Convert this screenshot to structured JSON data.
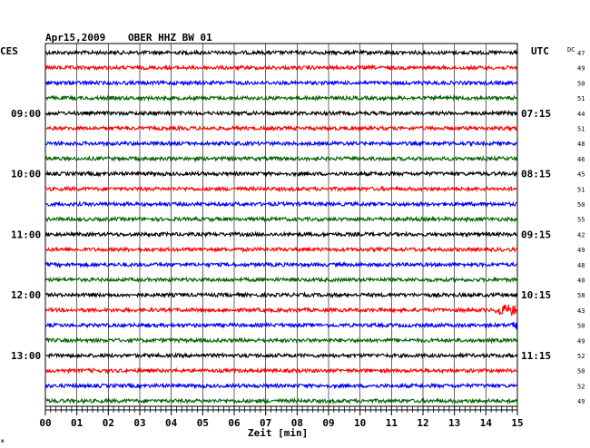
{
  "header": {
    "date": "Apr15,2009",
    "station": "OBER HHZ BW 01",
    "left_timezone": "CES",
    "right_timezone": "UTC",
    "dc_label": "DC"
  },
  "chart_data": {
    "type": "line",
    "title": "Apr15,2009   OBER HHZ BW 01",
    "xlabel": "Zeit [min]",
    "xlim": [
      0,
      15
    ],
    "x_ticks": [
      "00",
      "01",
      "02",
      "03",
      "04",
      "05",
      "06",
      "07",
      "08",
      "09",
      "10",
      "11",
      "12",
      "13",
      "14",
      "15"
    ],
    "left_hour_labels": [
      "09:00",
      "10:00",
      "11:00",
      "12:00",
      "13:00"
    ],
    "right_hour_labels": [
      "07:15",
      "08:15",
      "09:15",
      "10:15",
      "11:15"
    ],
    "trace_colors": [
      "#000000",
      "#ff0000",
      "#0000ff",
      "#006400"
    ],
    "dc_values": [
      "47",
      "49",
      "50",
      "51",
      "44",
      "51",
      "48",
      "46",
      "45",
      "51",
      "50",
      "55",
      "42",
      "49",
      "48",
      "40",
      "58",
      "43",
      "50",
      "49",
      "52",
      "50",
      "52",
      "49"
    ],
    "event": {
      "trace_index": 17,
      "minute_start": 14.3,
      "note": "burst"
    },
    "event2": {
      "trace_index": 18,
      "minute_start": 14.8,
      "note": "burst"
    },
    "grid": true
  },
  "footer": {
    "mark": "ж"
  }
}
